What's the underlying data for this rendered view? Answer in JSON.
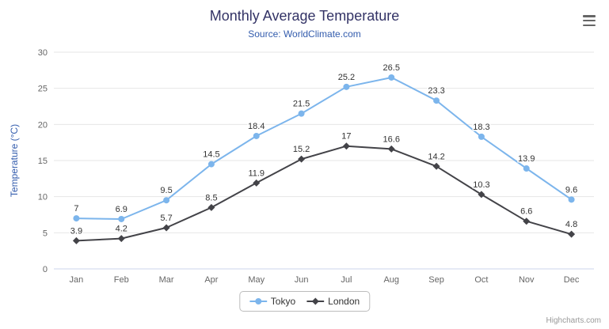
{
  "chart_data": {
    "type": "line",
    "title": "Monthly Average Temperature",
    "subtitle": "Source: WorldClimate.com",
    "categories": [
      "Jan",
      "Feb",
      "Mar",
      "Apr",
      "May",
      "Jun",
      "Jul",
      "Aug",
      "Sep",
      "Oct",
      "Nov",
      "Dec"
    ],
    "series": [
      {
        "name": "Tokyo",
        "color": "#7cb5ec",
        "marker": "circle",
        "values": [
          7,
          6.9,
          9.5,
          14.5,
          18.4,
          21.5,
          25.2,
          26.5,
          23.3,
          18.3,
          13.9,
          9.6
        ]
      },
      {
        "name": "London",
        "color": "#434348",
        "marker": "diamond",
        "values": [
          3.9,
          4.2,
          5.7,
          8.5,
          11.9,
          15.2,
          17,
          16.6,
          14.2,
          10.3,
          6.6,
          4.8
        ]
      }
    ],
    "xlabel": "",
    "ylabel": "Temperature (°C)",
    "ylim": [
      0,
      30
    ],
    "ytick_interval": 5,
    "grid": true,
    "legend_position": "bottom",
    "credits": "Highcharts.com",
    "colors": {
      "title": "#333366",
      "subtitle": "#335cad",
      "axis_label": "#666666",
      "grid_line": "#e6e6e6",
      "axis_line": "#ccd6eb",
      "data_label": "#333333"
    }
  }
}
